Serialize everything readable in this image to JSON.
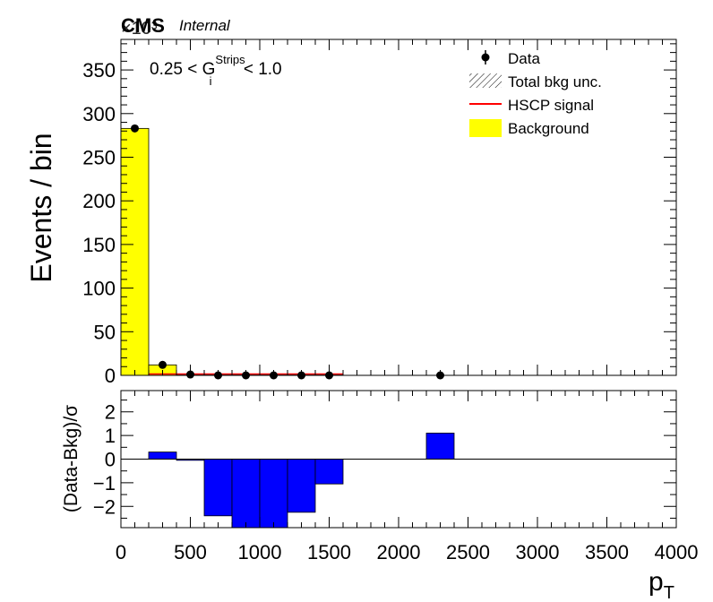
{
  "chart_data": [
    {
      "type": "bar",
      "panel": "main",
      "experiment_label": "CMS",
      "status_label": "Internal",
      "scale_label": "×10³",
      "ylabel": "Events / bin",
      "selection": {
        "prefix": "0.25 < G",
        "superscript": "Strips",
        "subscript": "i",
        "suffix": " < 1.0"
      },
      "bin_edges": [
        0,
        200,
        400,
        600,
        800,
        1000,
        1200,
        1400,
        1600,
        1800,
        2000,
        2200,
        2400,
        2600,
        2800,
        3000,
        3200,
        3400,
        3600,
        3800,
        4000
      ],
      "background": [
        283,
        12,
        1,
        0.3,
        0.1,
        0.05,
        0.02,
        0.01,
        0,
        0,
        0,
        0,
        0,
        0,
        0,
        0,
        0,
        0,
        0,
        0
      ],
      "data_points": [
        {
          "x": 100,
          "y": 283
        },
        {
          "x": 300,
          "y": 12
        },
        {
          "x": 500,
          "y": 1
        },
        {
          "x": 700,
          "y": 0
        },
        {
          "x": 900,
          "y": 0
        },
        {
          "x": 1100,
          "y": 0
        },
        {
          "x": 1300,
          "y": 0
        },
        {
          "x": 1500,
          "y": 0
        },
        {
          "x": 2300,
          "y": 0
        }
      ],
      "signal_color": "#ff0000",
      "background_color": "#ffff00",
      "legend": [
        {
          "label": "Data",
          "style": "marker"
        },
        {
          "label": "Total bkg unc.",
          "style": "hatch"
        },
        {
          "label": "HSCP signal",
          "style": "line",
          "color": "#ff0000"
        },
        {
          "label": "Background",
          "style": "fill",
          "color": "#ffff00"
        }
      ],
      "legend_position": "top-right",
      "ylim": [
        0,
        385
      ],
      "yticks": [
        0,
        50,
        100,
        150,
        200,
        250,
        300,
        350
      ]
    },
    {
      "type": "bar",
      "panel": "ratio",
      "ylabel": "(Data-Bkg)/σ",
      "xlabel": "p_T",
      "bin_edges": [
        0,
        200,
        400,
        600,
        800,
        1000,
        1200,
        1400,
        1600,
        1800,
        2000,
        2200,
        2400,
        2600,
        2800,
        3000,
        3200,
        3400,
        3600,
        3800,
        4000
      ],
      "values": [
        0,
        0.3,
        -0.05,
        -2.4,
        -2.9,
        -2.9,
        -2.25,
        -1.05,
        0,
        0,
        0,
        1.1,
        0,
        0,
        0,
        0,
        0,
        0,
        0,
        0
      ],
      "bar_color": "#0000ff",
      "xlim": [
        0,
        4000
      ],
      "ylim": [
        -2.9,
        2.9
      ],
      "yticks": [
        -2,
        -1,
        0,
        1,
        2
      ],
      "ytick_labels": [
        "−2",
        "−1",
        "0",
        "1",
        "2"
      ],
      "xticks": [
        0,
        500,
        1000,
        1500,
        2000,
        2500,
        3000,
        3500,
        4000
      ]
    }
  ]
}
